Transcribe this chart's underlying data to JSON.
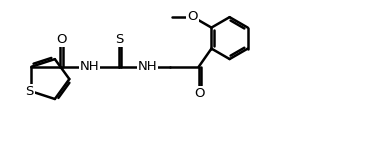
{
  "background_color": "#ffffff",
  "line_color": "#000000",
  "line_width": 1.8,
  "dbo": 0.055,
  "figsize": [
    3.83,
    1.42
  ],
  "dpi": 100,
  "xlim": [
    0,
    9.5
  ],
  "ylim": [
    0,
    3.5
  ],
  "fs": 9.5
}
